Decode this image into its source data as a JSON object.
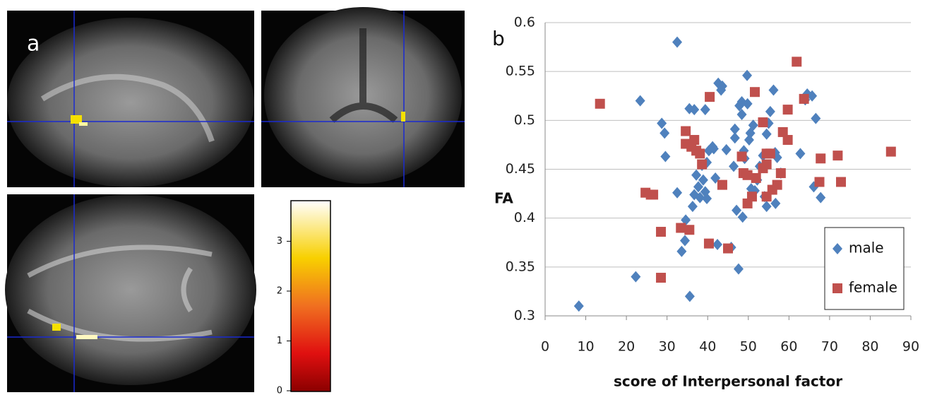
{
  "panel_a": {
    "label": "a",
    "colorbar": {
      "lim": [
        0,
        3.8
      ],
      "ticks": [
        0,
        1,
        2,
        3
      ]
    }
  },
  "chart_data": {
    "type": "scatter",
    "panel_label": "b",
    "x_label": "score of Interpersonal factor",
    "y_label": "FA",
    "xlim": [
      0,
      90
    ],
    "xticks": [
      0,
      10,
      20,
      30,
      40,
      50,
      60,
      70,
      80,
      90
    ],
    "ylim": [
      0.3,
      0.6
    ],
    "yticks": [
      0.3,
      0.35,
      0.4,
      0.45,
      0.5,
      0.55,
      0.6
    ],
    "grid": true,
    "legend": "lower right",
    "series": [
      {
        "name": "male",
        "color": "#4f81bd",
        "marker": "diamond",
        "x": [
          8.3,
          22.3,
          23.4,
          28.7,
          29.4,
          29.6,
          32.5,
          32.5,
          33.6,
          34.4,
          34.6,
          35.5,
          36.7,
          35.6,
          36.3,
          36.7,
          37.2,
          37.7,
          38.1,
          38.6,
          38.9,
          39.4,
          39.8,
          39.8,
          40.3,
          39.4,
          41.5,
          41.2,
          41.9,
          42.4,
          42.6,
          43.3,
          43.6,
          44.6,
          45.8,
          46.4,
          46.7,
          46.7,
          47.1,
          47.6,
          47.8,
          48.4,
          48.4,
          48.6,
          48.9,
          49.1,
          49.7,
          49.8,
          50.2,
          50.5,
          50.7,
          51.2,
          51.6,
          52.2,
          52.8,
          53.6,
          54.0,
          54.5,
          54.5,
          55.0,
          55.4,
          56.2,
          56.6,
          56.7,
          57.1,
          58.0,
          62.8,
          64.0,
          64.5,
          65.7,
          66.1,
          66.6,
          67.8
        ],
        "values": [
          0.31,
          0.34,
          0.52,
          0.497,
          0.487,
          0.463,
          0.58,
          0.426,
          0.366,
          0.377,
          0.398,
          0.512,
          0.511,
          0.32,
          0.412,
          0.424,
          0.444,
          0.432,
          0.421,
          0.454,
          0.439,
          0.427,
          0.42,
          0.457,
          0.469,
          0.511,
          0.471,
          0.473,
          0.441,
          0.373,
          0.538,
          0.531,
          0.535,
          0.47,
          0.37,
          0.453,
          0.491,
          0.482,
          0.408,
          0.348,
          0.515,
          0.519,
          0.506,
          0.401,
          0.469,
          0.461,
          0.546,
          0.517,
          0.48,
          0.487,
          0.43,
          0.495,
          0.428,
          0.439,
          0.453,
          0.464,
          0.422,
          0.486,
          0.412,
          0.497,
          0.509,
          0.531,
          0.467,
          0.415,
          0.462,
          0.446,
          0.466,
          0.521,
          0.527,
          0.525,
          0.432,
          0.502,
          0.421
        ]
      },
      {
        "name": "female",
        "color": "#c0504d",
        "marker": "square",
        "x": [
          13.5,
          24.7,
          26.0,
          26.6,
          28.5,
          28.5,
          33.4,
          34.6,
          34.6,
          35.5,
          36.0,
          36.7,
          37.2,
          38.1,
          38.6,
          40.3,
          40.5,
          43.6,
          45.0,
          48.4,
          48.8,
          49.8,
          49.8,
          50.9,
          51.6,
          51.9,
          53.6,
          53.6,
          54.5,
          54.5,
          54.5,
          55.4,
          55.9,
          57.1,
          58.0,
          58.5,
          59.7,
          59.7,
          61.9,
          63.7,
          67.5,
          67.8,
          72.0,
          72.8,
          85.1
        ],
        "values": [
          0.517,
          0.426,
          0.424,
          0.424,
          0.386,
          0.339,
          0.39,
          0.489,
          0.476,
          0.388,
          0.473,
          0.48,
          0.469,
          0.466,
          0.455,
          0.374,
          0.524,
          0.434,
          0.369,
          0.463,
          0.446,
          0.444,
          0.415,
          0.422,
          0.529,
          0.441,
          0.498,
          0.451,
          0.455,
          0.466,
          0.422,
          0.466,
          0.429,
          0.434,
          0.446,
          0.488,
          0.48,
          0.511,
          0.56,
          0.522,
          0.437,
          0.461,
          0.464,
          0.437,
          0.468
        ]
      }
    ]
  }
}
